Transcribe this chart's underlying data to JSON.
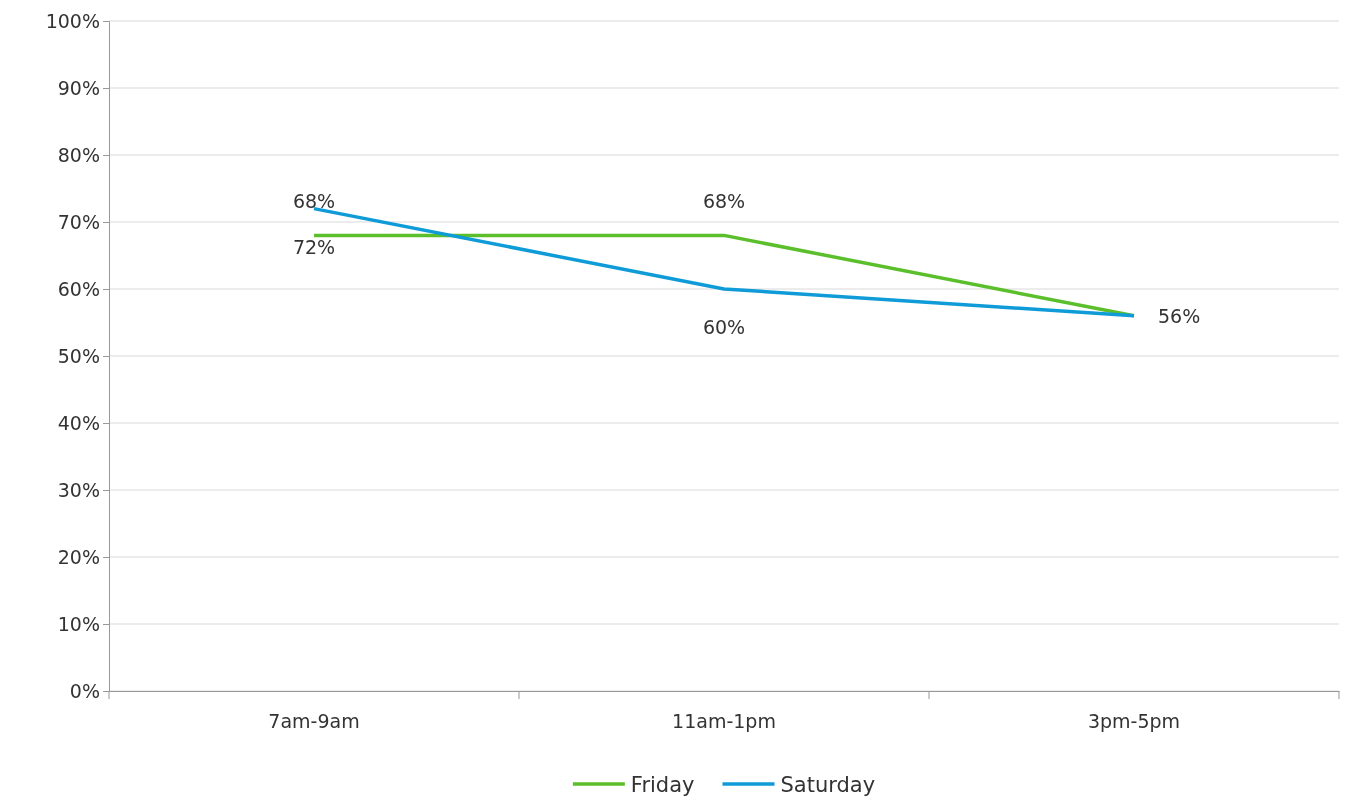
{
  "chart_data": {
    "type": "line",
    "categories": [
      "7am-9am",
      "11am-1pm",
      "3pm-5pm"
    ],
    "series": [
      {
        "name": "Friday",
        "color": "#5bbf2b",
        "values": [
          68,
          68,
          56
        ],
        "value_labels": [
          "68%",
          "68%",
          null
        ]
      },
      {
        "name": "Saturday",
        "color": "#0f9bd7",
        "values": [
          72,
          60,
          56
        ],
        "value_labels": [
          "72%",
          "60%",
          "56%"
        ]
      }
    ],
    "ylim": [
      0,
      100
    ],
    "yticks": [
      {
        "value": 0,
        "label": "0%"
      },
      {
        "value": 10,
        "label": "10%"
      },
      {
        "value": 20,
        "label": "20%"
      },
      {
        "value": 30,
        "label": "30%"
      },
      {
        "value": 40,
        "label": "40%"
      },
      {
        "value": 50,
        "label": "50%"
      },
      {
        "value": 60,
        "label": "60%"
      },
      {
        "value": 70,
        "label": "70%"
      },
      {
        "value": 80,
        "label": "80%"
      },
      {
        "value": 90,
        "label": "90%"
      },
      {
        "value": 100,
        "label": "100%"
      }
    ],
    "grid": "y",
    "legend": "bottom",
    "marker": "none",
    "line_style": "solid"
  }
}
